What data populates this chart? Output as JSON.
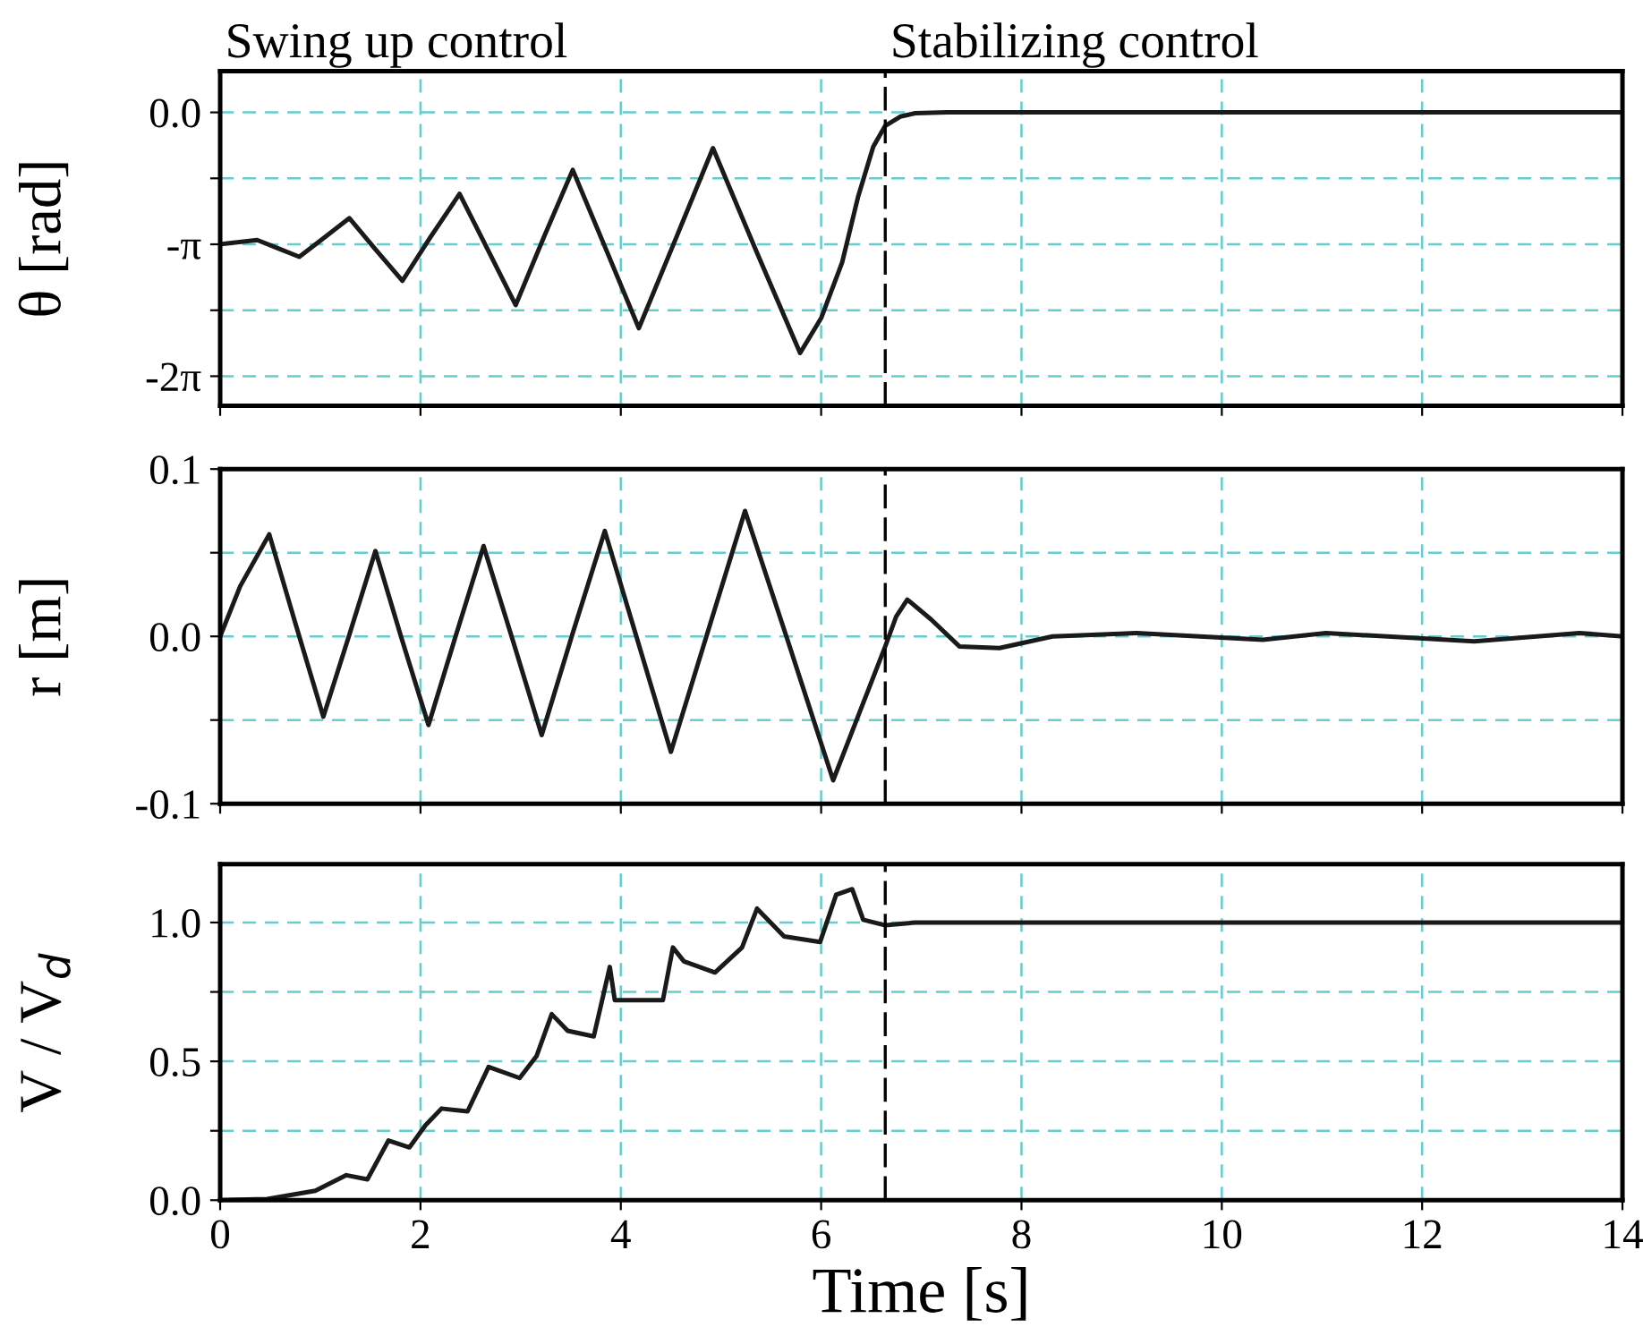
{
  "chart_data": [
    {
      "type": "line",
      "ylabel": "θ [rad]",
      "annotations": [
        "Swing up control",
        "Stabilizing control"
      ],
      "tick_labels": "y",
      "grid": true,
      "xlim": [
        0,
        14
      ],
      "xticks": [
        0,
        2,
        4,
        6,
        8,
        10,
        12,
        14
      ],
      "ylim": [
        -6.99,
        0.98
      ],
      "yticks": [
        {
          "value": 0,
          "label": "0.0"
        },
        {
          "value": -1.5708,
          "label": null
        },
        {
          "value": -3.1416,
          "label": "-π"
        },
        {
          "value": -4.7124,
          "label": null
        },
        {
          "value": -6.2832,
          "label": "-2π"
        }
      ],
      "ref_lines": [
        {
          "axis": "x",
          "value": 6.64,
          "color": "#000000",
          "line_style": "dashed"
        }
      ],
      "series": [
        {
          "color": "#1a1a1a",
          "x": [
            0,
            0.37,
            0.58,
            0.79,
            1.04,
            1.29,
            1.55,
            1.82,
            2.1,
            2.39,
            2.67,
            2.95,
            3.23,
            3.52,
            3.85,
            4.18,
            4.55,
            4.92,
            5.35,
            5.79,
            6.0,
            6.21,
            6.37,
            6.52,
            6.64,
            6.79,
            6.94,
            7.26,
            14
          ],
          "values": [
            -3.14,
            -3.04,
            -3.24,
            -3.44,
            -2.98,
            -2.52,
            -3.26,
            -4.01,
            -2.97,
            -1.94,
            -3.26,
            -4.59,
            -2.98,
            -1.37,
            -3.25,
            -5.14,
            -3.0,
            -0.85,
            -3.29,
            -5.73,
            -4.9,
            -3.57,
            -2.0,
            -0.82,
            -0.32,
            -0.1,
            -0.02,
            0,
            0
          ]
        }
      ]
    },
    {
      "type": "line",
      "ylabel": "r [m]",
      "tick_labels": "y",
      "grid": true,
      "xlim": [
        0,
        14
      ],
      "xticks": [
        0,
        2,
        4,
        6,
        8,
        10,
        12,
        14
      ],
      "ylim": [
        -0.1,
        0.1
      ],
      "yticks": [
        {
          "value": 0.1,
          "label": "0.1"
        },
        {
          "value": 0.05,
          "label": null
        },
        {
          "value": 0,
          "label": "0.0"
        },
        {
          "value": -0.05,
          "label": null
        },
        {
          "value": -0.1,
          "label": "-0.1"
        }
      ],
      "ref_lines": [
        {
          "axis": "x",
          "value": 6.64,
          "color": "#000000",
          "line_style": "dashed"
        }
      ],
      "series": [
        {
          "color": "#1a1a1a",
          "x": [
            0,
            0.2,
            0.49,
            0.76,
            1.03,
            1.29,
            1.55,
            1.81,
            2.08,
            2.35,
            2.63,
            2.92,
            3.21,
            3.52,
            3.84,
            4.17,
            4.5,
            4.87,
            5.24,
            5.68,
            6.12,
            6.38,
            6.64,
            6.75,
            6.86,
            7.1,
            7.38,
            7.78,
            8.31,
            9.15,
            10.41,
            11.04,
            12.52,
            13.57,
            14
          ],
          "values": [
            0,
            0.03,
            0.061,
            0.006,
            -0.048,
            0.001,
            0.051,
            -0.001,
            -0.053,
            0.0,
            0.054,
            -0.002,
            -0.059,
            0.002,
            0.063,
            -0.003,
            -0.069,
            0.003,
            0.075,
            -0.005,
            -0.086,
            -0.046,
            -0.006,
            0.012,
            0.022,
            0.01,
            -0.006,
            -0.007,
            0,
            0.002,
            -0.002,
            0.002,
            -0.003,
            0.002,
            0
          ]
        }
      ]
    },
    {
      "type": "line",
      "ylabel": "V / V$_{d}$",
      "xlabel": "Time [s]",
      "grid": true,
      "xlim": [
        0,
        14
      ],
      "xticks": [
        0,
        2,
        4,
        6,
        8,
        10,
        12,
        14
      ],
      "ylim": [
        0,
        1.21
      ],
      "yticks": [
        {
          "value": 0,
          "label": "0.0"
        },
        {
          "value": 0.25,
          "label": null
        },
        {
          "value": 0.5,
          "label": "0.5"
        },
        {
          "value": 0.75,
          "label": null
        },
        {
          "value": 1.0,
          "label": "1.0"
        }
      ],
      "ref_lines": [
        {
          "axis": "x",
          "value": 6.64,
          "color": "#000000",
          "line_style": "dashed"
        }
      ],
      "series": [
        {
          "color": "#1a1a1a",
          "x": [
            0,
            0.47,
            0.95,
            1.26,
            1.47,
            1.68,
            1.89,
            2.05,
            2.21,
            2.47,
            2.68,
            2.99,
            3.16,
            3.31,
            3.47,
            3.73,
            3.89,
            3.94,
            4.42,
            4.52,
            4.63,
            4.94,
            5.21,
            5.36,
            5.63,
            5.99,
            6.15,
            6.31,
            6.42,
            6.64,
            6.94,
            14
          ],
          "values": [
            0,
            0.004,
            0.034,
            0.09,
            0.075,
            0.215,
            0.19,
            0.27,
            0.33,
            0.32,
            0.48,
            0.44,
            0.52,
            0.67,
            0.61,
            0.59,
            0.84,
            0.72,
            0.72,
            0.91,
            0.86,
            0.82,
            0.91,
            1.05,
            0.95,
            0.93,
            1.1,
            1.12,
            1.01,
            0.99,
            1.0,
            1.0
          ]
        }
      ]
    }
  ]
}
